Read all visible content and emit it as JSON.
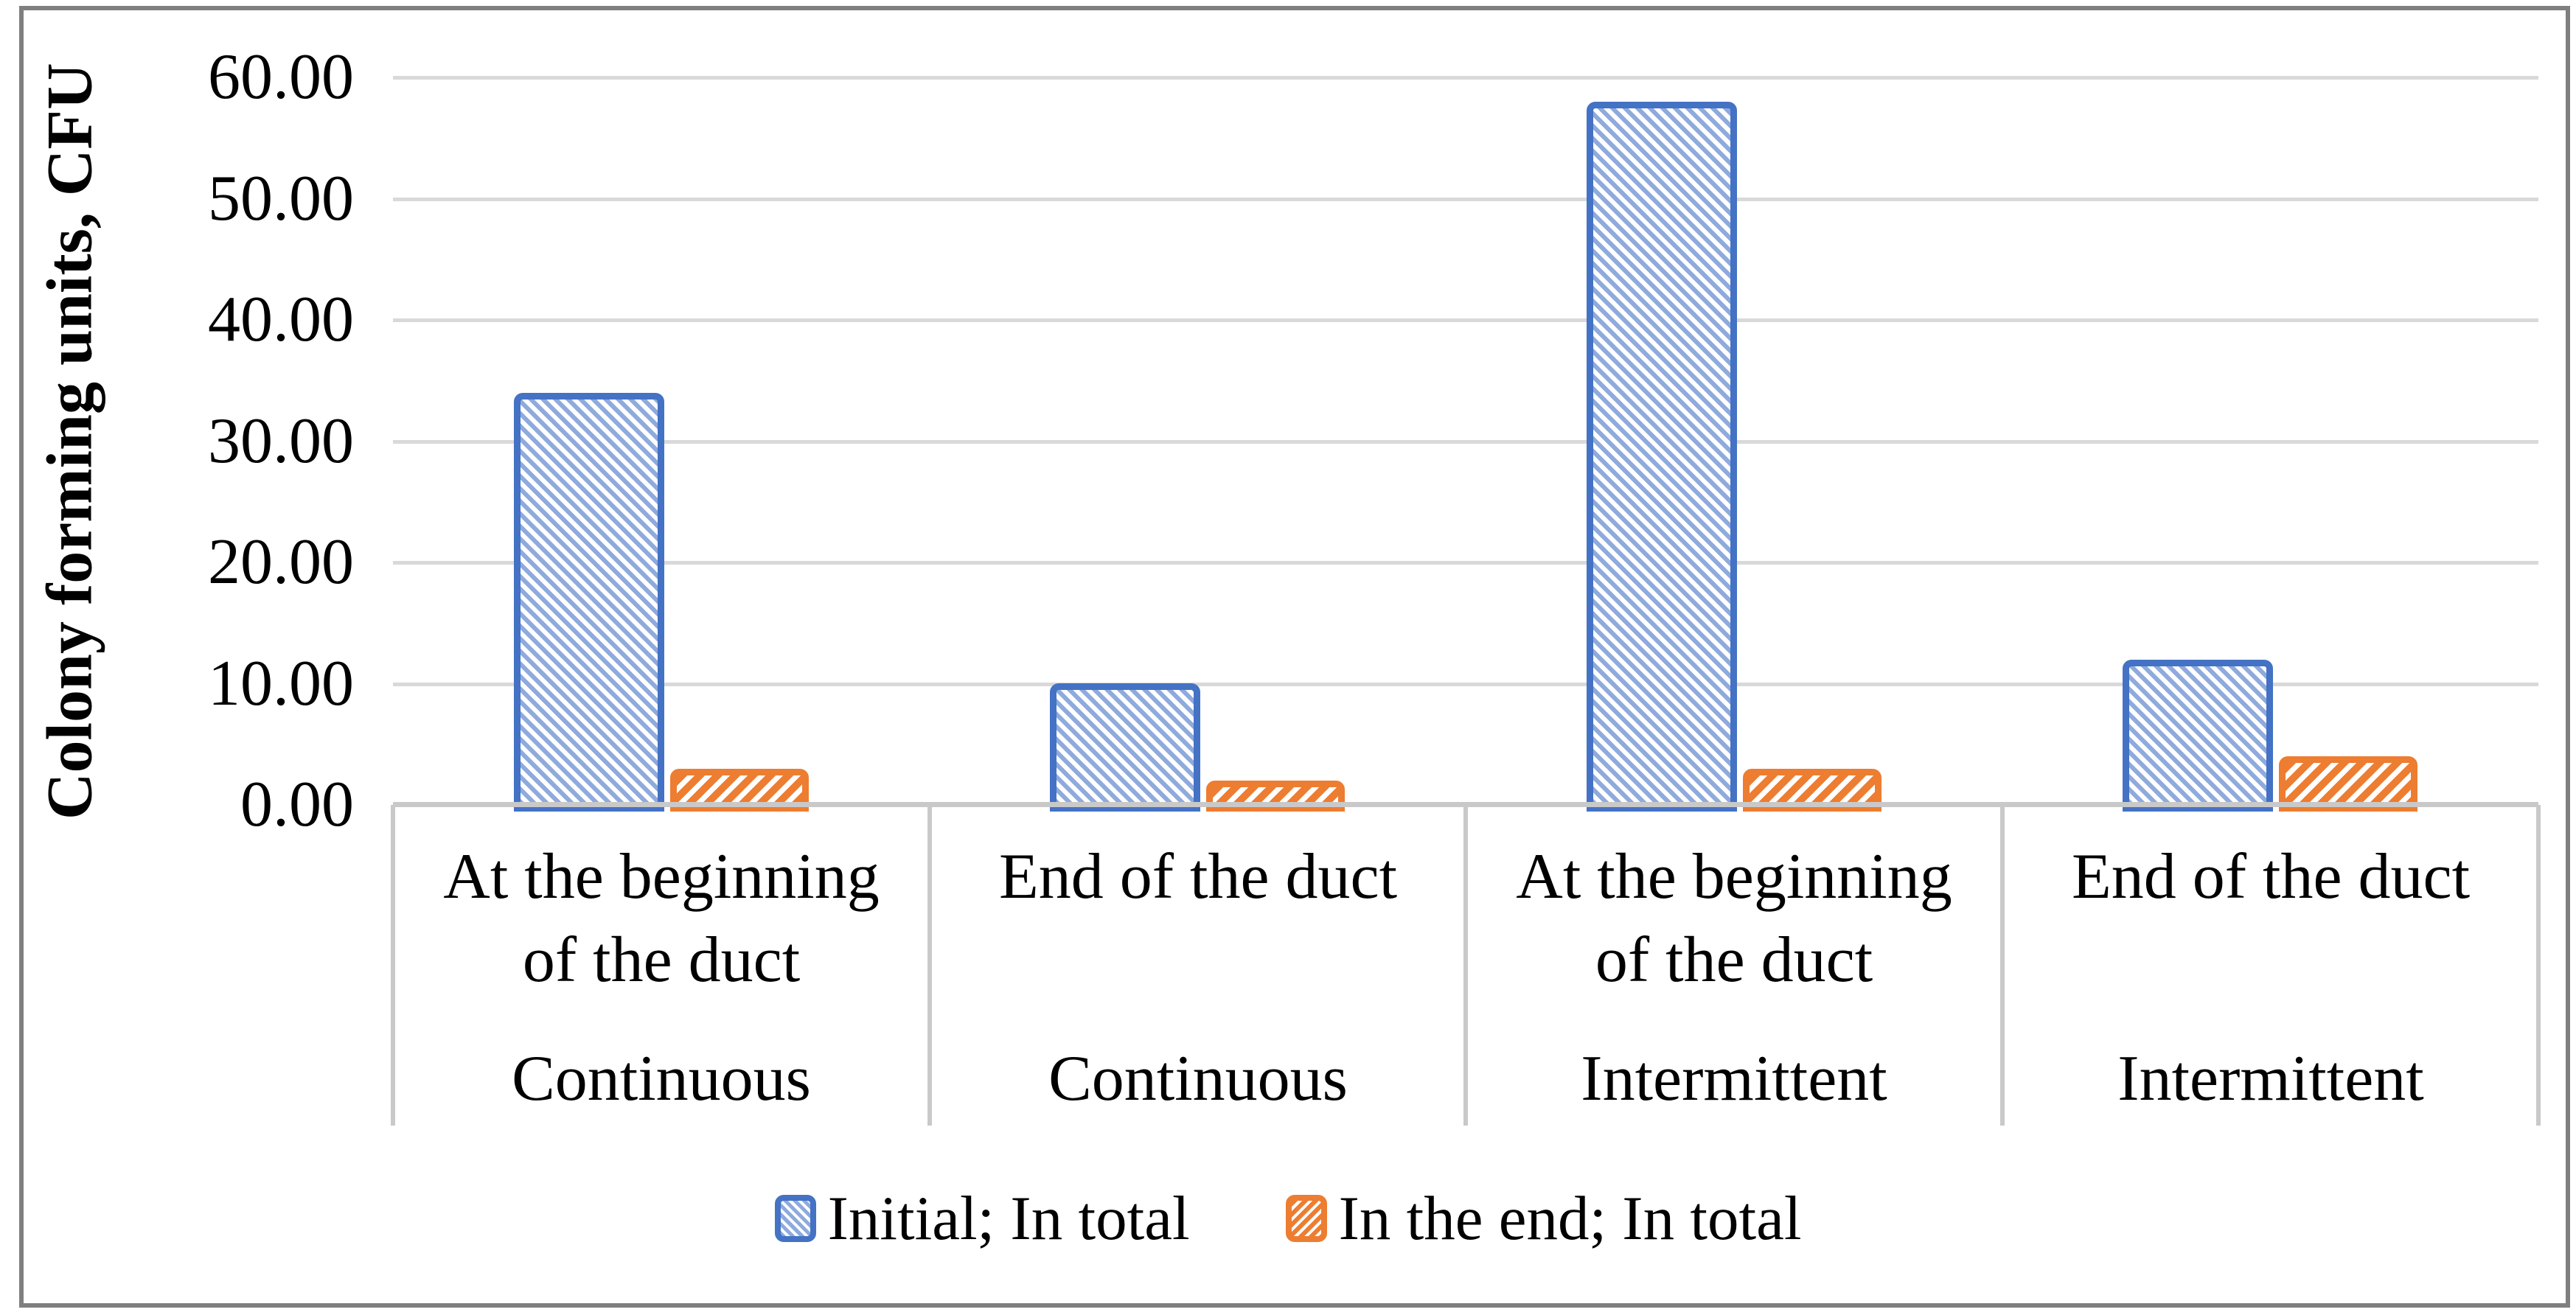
{
  "chart_data": {
    "type": "bar",
    "title": "",
    "ylabel": "Colony forming units, CFU",
    "ylim": [
      0,
      60
    ],
    "y_tick_step": 10,
    "y_tick_labels": [
      "60.00",
      "50.00",
      "40.00",
      "30.00",
      "20.00",
      "10.00",
      "0.00"
    ],
    "grid": true,
    "legend_position": "bottom",
    "categories": [
      {
        "label": "At the beginning of the duct",
        "group": "Continuous"
      },
      {
        "label": "End of the duct",
        "group": "Continuous"
      },
      {
        "label": "At the beginning of the duct",
        "group": "Intermittent"
      },
      {
        "label": "End of the duct",
        "group": "Intermittent"
      }
    ],
    "series": [
      {
        "name": "Initial; In total",
        "values": [
          34,
          10,
          58,
          12
        ],
        "border_color": "#4472C4",
        "fill_color": "#8FAADC",
        "hatch": "diagonal-down"
      },
      {
        "name": "In the end; In total",
        "values": [
          3,
          2,
          3,
          4
        ],
        "border_color": "#ED7D31",
        "fill_color": "#ED7D31",
        "hatch": "diagonal-up"
      }
    ],
    "colors": {
      "gridline": "#D9D9D9",
      "axis_line": "#C9C9C9",
      "text": "#000000",
      "frame_border": "#7F7F7F",
      "background": "#FFFFFF"
    }
  }
}
